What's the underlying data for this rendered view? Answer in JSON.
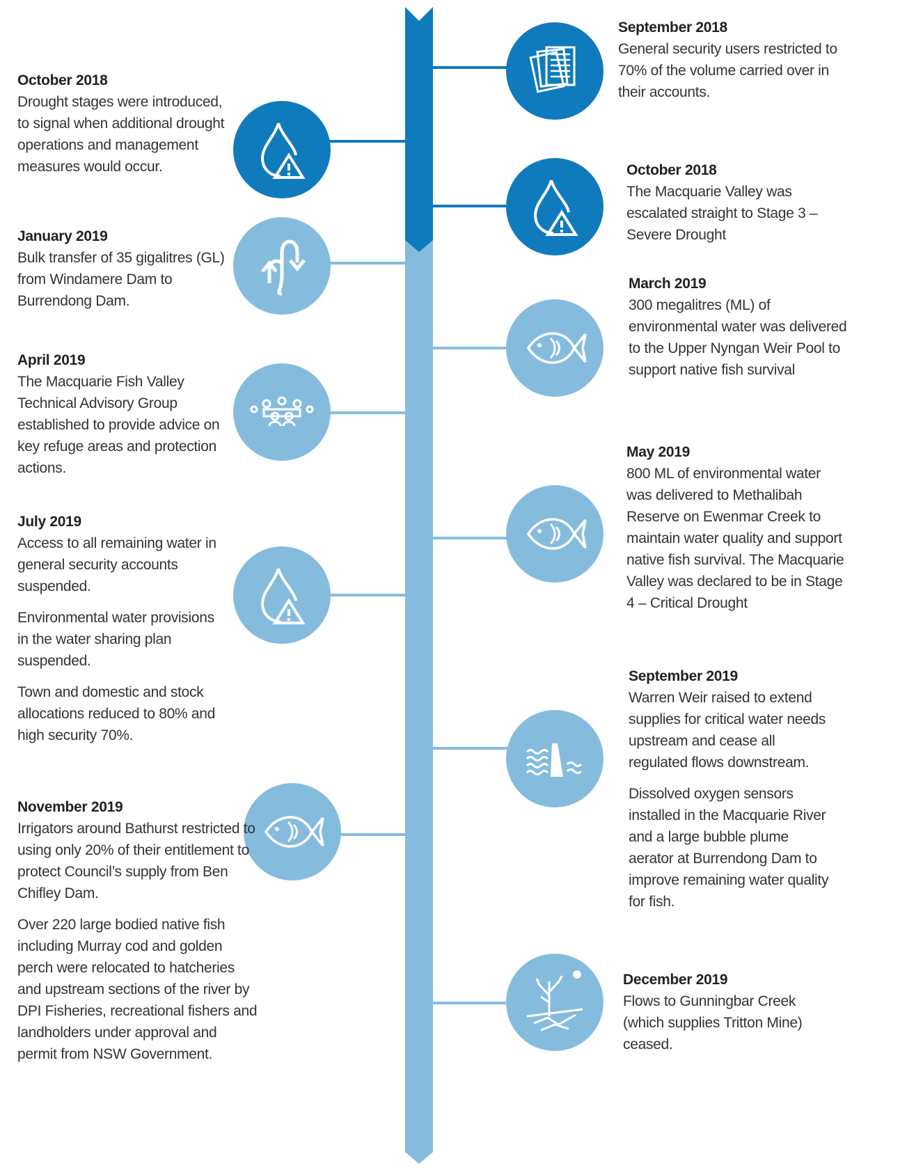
{
  "events": [
    {
      "date": "September 2018",
      "paragraphs": [
        "General security users restricted to 70% of the volume carried over in their accounts."
      ]
    },
    {
      "date": "October 2018",
      "paragraphs": [
        "Drought stages were introduced, to signal when additional drought operations and management measures would occur."
      ]
    },
    {
      "date": "October 2018",
      "paragraphs": [
        "The Macquarie Valley was escalated straight to Stage 3 – Severe Drought"
      ]
    },
    {
      "date": "January 2019",
      "paragraphs": [
        "Bulk transfer of 35 gigalitres (GL) from Windamere Dam to Burrendong Dam."
      ]
    },
    {
      "date": "March 2019",
      "paragraphs": [
        "300 megalitres (ML) of environmental water was delivered to the Upper Nyngan Weir Pool to support native fish survival"
      ]
    },
    {
      "date": "April 2019",
      "paragraphs": [
        "The Macquarie Fish Valley Technical Advisory Group established to provide advice on key refuge areas and protection actions."
      ]
    },
    {
      "date": "May 2019",
      "paragraphs": [
        "800 ML of environmental water was delivered to Methalibah Reserve on Ewenmar Creek to maintain water quality and support native fish survival. The Macquarie Valley was declared to be in Stage 4 – Critical Drought"
      ]
    },
    {
      "date": "July 2019",
      "paragraphs": [
        "Access to all remaining water in general security accounts suspended.",
        "Environmental water provisions in the water sharing plan suspended.",
        "Town and domestic and stock allocations reduced to 80% and high security 70%."
      ]
    },
    {
      "date": "September 2019",
      "paragraphs": [
        "Warren Weir raised to extend supplies for critical water needs upstream and cease all regulated flows downstream.",
        "Dissolved oxygen sensors installed in the Macquarie River and a large bubble plume aerator at Burrendong Dam to improve remaining water quality for fish."
      ]
    },
    {
      "date": "November 2019",
      "paragraphs": [
        "Irrigators around Bathurst restricted to using only 20% of their entitlement to protect Council’s supply from Ben Chifley Dam.",
        "Over 220 large bodied native fish including Murray cod and golden perch were relocated to hatcheries and upstream sections of the river by DPI Fisheries, recreational fishers and landholders under approval and permit from NSW Government."
      ]
    },
    {
      "date": "December 2019",
      "paragraphs": [
        "Flows to Gunningbar Creek (which supplies Tritton Mine) ceased."
      ]
    }
  ]
}
